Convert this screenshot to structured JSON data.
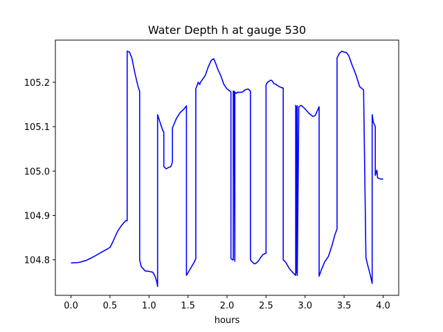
{
  "chart_data": {
    "type": "line",
    "title": "Water Depth h at gauge 530",
    "xlabel": "hours",
    "ylabel": "",
    "xlim": [
      -0.2,
      4.2
    ],
    "ylim": [
      104.72,
      105.295
    ],
    "grid": false,
    "x_ticks": [
      0.0,
      0.5,
      1.0,
      1.5,
      2.0,
      2.5,
      3.0,
      3.5,
      4.0
    ],
    "x_tick_labels": [
      "0.0",
      "0.5",
      "1.0",
      "1.5",
      "2.0",
      "2.5",
      "3.0",
      "3.5",
      "4.0"
    ],
    "y_ticks": [
      104.8,
      104.9,
      105.0,
      105.1,
      105.2
    ],
    "y_tick_labels": [
      "104.8",
      "104.9",
      "105.0",
      "105.1",
      "105.2"
    ],
    "series": [
      {
        "color": "#0000ff",
        "x": [
          0.0,
          0.1,
          0.2,
          0.3,
          0.4,
          0.45,
          0.5,
          0.53,
          0.56,
          0.6,
          0.65,
          0.7,
          0.72,
          0.72,
          0.75,
          0.78,
          0.82,
          0.86,
          0.88,
          0.88,
          0.9,
          0.95,
          1.0,
          1.05,
          1.08,
          1.1,
          1.11,
          1.11,
          1.15,
          1.18,
          1.19,
          1.19,
          1.22,
          1.25,
          1.28,
          1.3,
          1.3,
          1.35,
          1.4,
          1.45,
          1.48,
          1.48,
          1.53,
          1.58,
          1.6,
          1.6,
          1.63,
          1.65,
          1.66,
          1.68,
          1.72,
          1.76,
          1.8,
          1.83,
          1.86,
          1.88,
          1.92,
          1.96,
          2.0,
          2.04,
          2.05,
          2.05,
          2.07,
          2.08,
          2.08,
          2.09,
          2.1,
          2.1,
          2.12,
          2.14,
          2.15,
          2.2,
          2.23,
          2.27,
          2.3,
          2.3,
          2.33,
          2.35,
          2.37,
          2.4,
          2.43,
          2.46,
          2.5,
          2.5,
          2.52,
          2.56,
          2.58,
          2.6,
          2.63,
          2.67,
          2.7,
          2.72,
          2.72,
          2.75,
          2.8,
          2.85,
          2.88,
          2.88,
          2.885,
          2.89,
          2.895,
          2.9,
          2.9,
          2.92,
          2.95,
          3.0,
          3.05,
          3.1,
          3.13,
          3.15,
          3.18,
          3.18,
          3.21,
          3.25,
          3.3,
          3.35,
          3.38,
          3.41,
          3.41,
          3.44,
          3.47,
          3.5,
          3.53,
          3.56,
          3.6,
          3.65,
          3.7,
          3.75,
          3.78,
          3.78,
          3.8,
          3.83,
          3.86,
          3.86,
          3.875,
          3.9,
          3.9,
          3.92,
          3.93,
          3.95,
          3.97,
          4.0
        ],
        "y": [
          104.793,
          104.794,
          104.799,
          104.808,
          104.818,
          104.823,
          104.828,
          104.838,
          104.85,
          104.865,
          104.878,
          104.888,
          104.888,
          105.27,
          105.268,
          105.255,
          105.22,
          105.19,
          105.18,
          104.8,
          104.785,
          104.775,
          104.774,
          104.772,
          104.762,
          104.75,
          104.74,
          105.127,
          105.105,
          105.09,
          105.088,
          105.01,
          105.005,
          105.008,
          105.01,
          105.02,
          105.097,
          105.118,
          105.132,
          105.14,
          105.147,
          104.765,
          104.78,
          104.795,
          104.803,
          105.185,
          105.2,
          105.195,
          105.2,
          105.205,
          105.215,
          105.235,
          105.25,
          105.253,
          105.24,
          105.23,
          105.215,
          105.195,
          105.185,
          105.18,
          105.178,
          104.803,
          104.8,
          104.8,
          105.18,
          105.18,
          104.797,
          105.178,
          105.175,
          105.178,
          105.177,
          105.178,
          105.183,
          105.185,
          105.18,
          104.8,
          104.794,
          104.791,
          104.792,
          104.797,
          104.805,
          104.812,
          104.815,
          105.195,
          105.2,
          105.205,
          105.203,
          105.197,
          105.195,
          105.19,
          105.188,
          105.187,
          104.8,
          104.795,
          104.78,
          104.77,
          104.765,
          105.148,
          104.77,
          105.145,
          105.14,
          105.147,
          104.765,
          105.145,
          105.148,
          105.14,
          105.13,
          105.123,
          105.125,
          105.133,
          105.145,
          104.763,
          104.778,
          104.795,
          104.808,
          104.835,
          104.855,
          104.87,
          105.255,
          105.265,
          105.27,
          105.268,
          105.267,
          105.26,
          105.24,
          105.218,
          105.19,
          105.183,
          104.808,
          104.805,
          104.79,
          104.77,
          104.747,
          105.127,
          105.11,
          105.1,
          104.99,
          105.002,
          104.985,
          104.983,
          104.982,
          104.982
        ]
      }
    ]
  }
}
